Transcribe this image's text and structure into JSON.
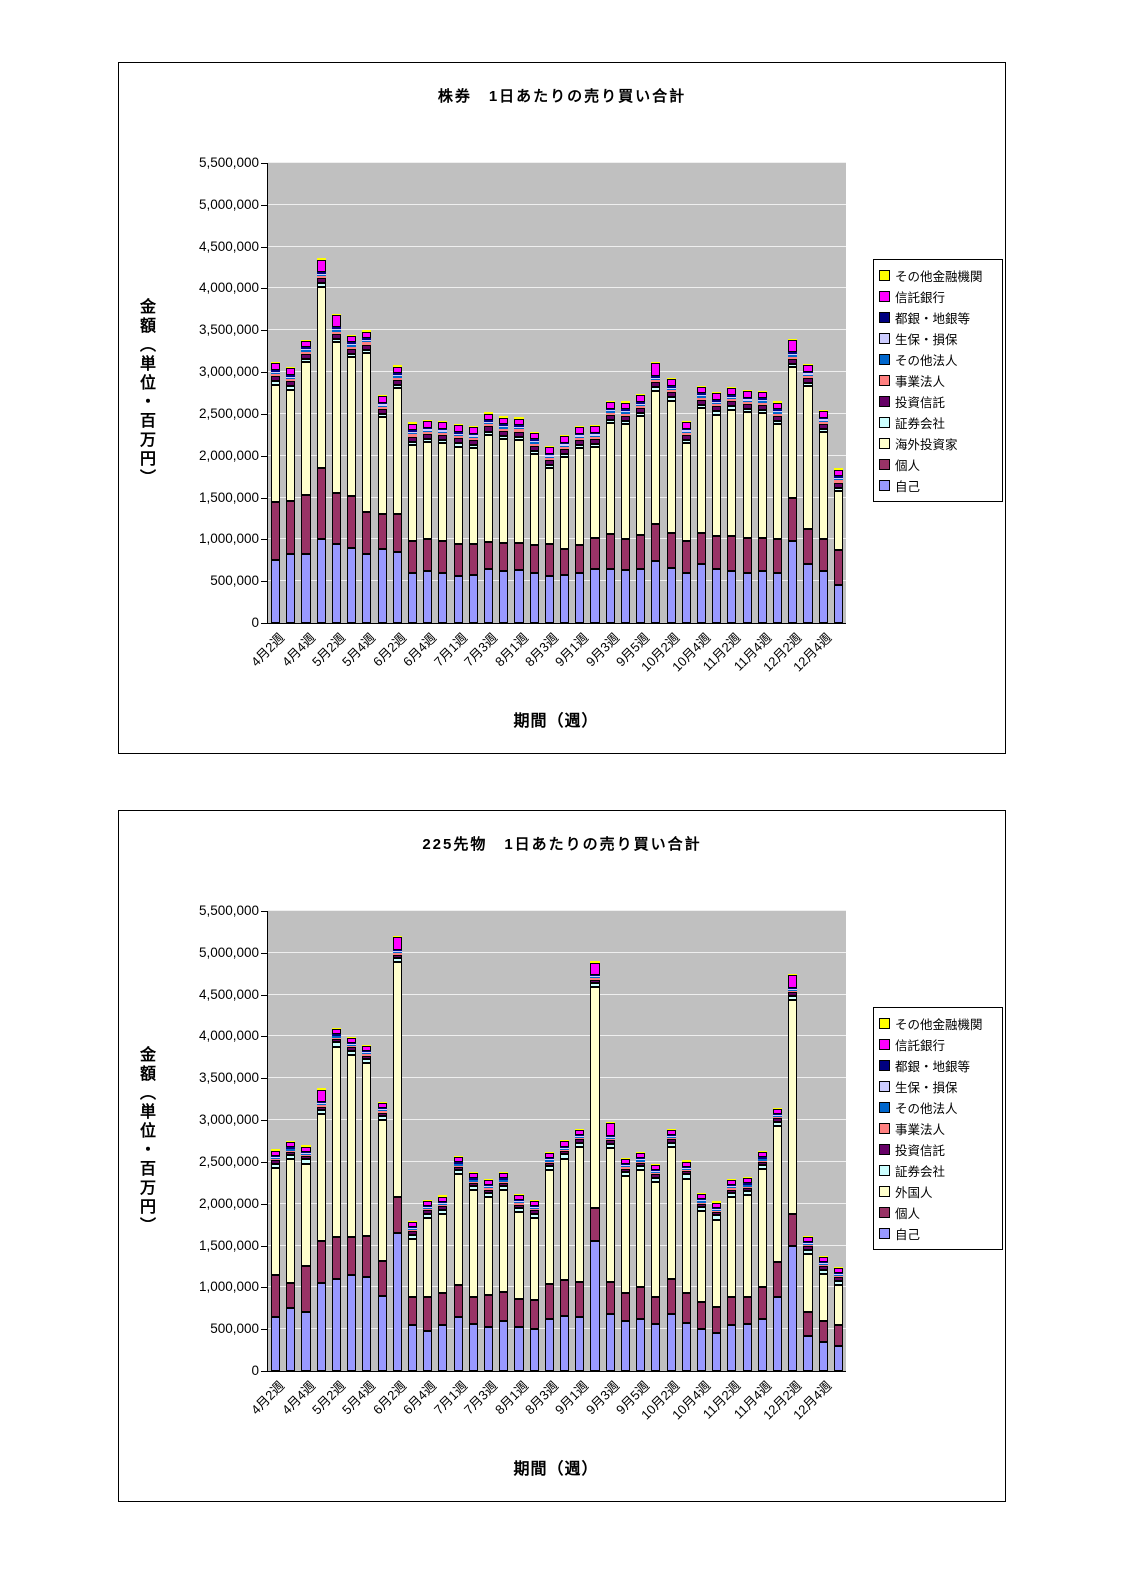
{
  "chart_data": [
    {
      "type": "bar",
      "stacked": true,
      "title": "株券　1日あたりの売り買い合計",
      "xlabel": "期間（週）",
      "ylabel": "金額（単位・百万円）",
      "ylim": [
        0,
        5500000
      ],
      "ytick_step": 500000,
      "plot_bg": "#C0C0C0",
      "grid_color": "#EFEFEF",
      "legend_position": "right",
      "xtick_every": 2,
      "categories": [
        "4月2週",
        "4月3週",
        "4月4週",
        "5月1週",
        "5月2週",
        "5月3週",
        "5月4週",
        "6月1週",
        "6月2週",
        "6月3週",
        "6月4週",
        "6月5週",
        "7月1週",
        "7月2週",
        "7月3週",
        "7月4週",
        "8月1週",
        "8月2週",
        "8月3週",
        "8月4週",
        "9月1週",
        "9月2週",
        "9月3週",
        "9月4週",
        "9月5週",
        "10月1週",
        "10月2週",
        "10月3週",
        "10月4週",
        "11月1週",
        "11月2週",
        "11月3週",
        "11月4週",
        "12月1週",
        "12月2週",
        "12月3週",
        "12月4週",
        "12月5週"
      ],
      "series": [
        {
          "name": "自己",
          "color": "#9999FF",
          "values": [
            750000,
            820000,
            830000,
            1000000,
            950000,
            900000,
            830000,
            880000,
            850000,
            600000,
            620000,
            600000,
            560000,
            580000,
            640000,
            620000,
            630000,
            600000,
            560000,
            580000,
            600000,
            640000,
            650000,
            630000,
            650000,
            740000,
            660000,
            600000,
            700000,
            640000,
            620000,
            600000,
            620000,
            600000,
            980000,
            700000,
            620000,
            450000
          ]
        },
        {
          "name": "個人",
          "color": "#993366",
          "values": [
            700000,
            640000,
            700000,
            850000,
            600000,
            620000,
            500000,
            420000,
            450000,
            380000,
            380000,
            380000,
            380000,
            360000,
            330000,
            340000,
            330000,
            330000,
            380000,
            300000,
            330000,
            380000,
            420000,
            380000,
            400000,
            440000,
            420000,
            380000,
            380000,
            400000,
            420000,
            420000,
            400000,
            400000,
            520000,
            420000,
            380000,
            420000
          ]
        },
        {
          "name": "海外投資家",
          "color": "#FFFFCC",
          "values": [
            1400000,
            1330000,
            1590000,
            2170000,
            1810000,
            1660000,
            1900000,
            1160000,
            1510000,
            1150000,
            1160000,
            1170000,
            1170000,
            1150000,
            1280000,
            1240000,
            1230000,
            1090000,
            910000,
            1100000,
            1160000,
            1080000,
            1320000,
            1370000,
            1420000,
            1600000,
            1580000,
            1170000,
            1490000,
            1450000,
            1510000,
            1500000,
            1490000,
            1380000,
            1560000,
            1710000,
            1280000,
            710000
          ]
        },
        {
          "name": "証券会社",
          "color": "#CCFFFF",
          "value_all": 40000
        },
        {
          "name": "投資信託",
          "color": "#660066",
          "value_all": 60000
        },
        {
          "name": "事業法人",
          "color": "#FF8080",
          "value_all": 25000
        },
        {
          "name": "その他法人",
          "color": "#0066CC",
          "value_all": 15000
        },
        {
          "name": "生保・損保",
          "color": "#CCCCFF",
          "value_all": 15000
        },
        {
          "name": "都銀・地銀等",
          "color": "#000080",
          "value_all": 20000
        },
        {
          "name": "信託銀行",
          "color": "#FF00FF",
          "value_all": 80000,
          "value_overrides": {
            "3": 150000,
            "4": 150000,
            "25": 150000,
            "34": 150000
          }
        },
        {
          "name": "その他金融機関",
          "color": "#FFFF00",
          "value_all": 15000
        }
      ],
      "legend": [
        "その他金融機関",
        "信託銀行",
        "都銀・地銀等",
        "生保・損保",
        "その他法人",
        "事業法人",
        "投資信託",
        "証券会社",
        "海外投資家",
        "個人",
        "自己"
      ]
    },
    {
      "type": "bar",
      "stacked": true,
      "title": "225先物　1日あたりの売り買い合計",
      "xlabel": "期間（週）",
      "ylabel": "金額（単位・百万円）",
      "ylim": [
        0,
        5500000
      ],
      "ytick_step": 500000,
      "plot_bg": "#C0C0C0",
      "grid_color": "#EFEFEF",
      "legend_position": "right",
      "xtick_every": 2,
      "categories": [
        "4月2週",
        "4月3週",
        "4月4週",
        "5月1週",
        "5月2週",
        "5月3週",
        "5月4週",
        "6月1週",
        "6月2週",
        "6月3週",
        "6月4週",
        "6月5週",
        "7月1週",
        "7月2週",
        "7月3週",
        "7月4週",
        "8月1週",
        "8月2週",
        "8月3週",
        "8月4週",
        "9月1週",
        "9月2週",
        "9月3週",
        "9月4週",
        "9月5週",
        "10月1週",
        "10月2週",
        "10月3週",
        "10月4週",
        "11月1週",
        "11月2週",
        "11月3週",
        "11月4週",
        "12月1週",
        "12月2週",
        "12月3週",
        "12月4週",
        "12月5週"
      ],
      "series": [
        {
          "name": "自己",
          "color": "#9999FF",
          "values": [
            650000,
            750000,
            700000,
            1050000,
            1100000,
            1150000,
            1130000,
            900000,
            1650000,
            550000,
            480000,
            550000,
            650000,
            560000,
            530000,
            600000,
            530000,
            500000,
            620000,
            660000,
            650000,
            1550000,
            680000,
            600000,
            620000,
            560000,
            680000,
            580000,
            500000,
            450000,
            550000,
            560000,
            620000,
            880000,
            1500000,
            420000,
            350000,
            300000
          ]
        },
        {
          "name": "個人",
          "color": "#993366",
          "values": [
            500000,
            300000,
            550000,
            500000,
            500000,
            450000,
            480000,
            420000,
            430000,
            330000,
            400000,
            380000,
            380000,
            320000,
            380000,
            350000,
            330000,
            350000,
            420000,
            430000,
            420000,
            400000,
            380000,
            330000,
            380000,
            330000,
            420000,
            350000,
            330000,
            320000,
            330000,
            330000,
            380000,
            420000,
            380000,
            280000,
            250000,
            250000
          ]
        },
        {
          "name": "外国人",
          "color": "#FFFFCC",
          "values": [
            1280000,
            1480000,
            1230000,
            1520000,
            2280000,
            2180000,
            2070000,
            1680000,
            2810000,
            700000,
            950000,
            950000,
            1320000,
            1280000,
            1170000,
            1210000,
            1040000,
            980000,
            1360000,
            1450000,
            1610000,
            2640000,
            1610000,
            1400000,
            1400000,
            1370000,
            1580000,
            1370000,
            1080000,
            1040000,
            1200000,
            1210000,
            1410000,
            1630000,
            2560000,
            700000,
            560000,
            480000
          ]
        },
        {
          "name": "証券会社",
          "color": "#CCFFFF",
          "value_all": 50000
        },
        {
          "name": "投資信託",
          "color": "#660066",
          "value_all": 40000
        },
        {
          "name": "事業法人",
          "color": "#FF8080",
          "value_all": 15000
        },
        {
          "name": "その他法人",
          "color": "#0066CC",
          "value_all": 15000
        },
        {
          "name": "生保・損保",
          "color": "#CCCCFF",
          "value_all": 10000
        },
        {
          "name": "都銀・地銀等",
          "color": "#000080",
          "value_all": 15000
        },
        {
          "name": "信託銀行",
          "color": "#FF00FF",
          "value_all": 60000,
          "value_overrides": {
            "3": 150000,
            "8": 150000,
            "21": 150000,
            "22": 150000,
            "34": 150000
          }
        },
        {
          "name": "その他金融機関",
          "color": "#FFFF00",
          "value_all": 15000
        }
      ],
      "legend": [
        "その他金融機関",
        "信託銀行",
        "都銀・地銀等",
        "生保・損保",
        "その他法人",
        "事業法人",
        "投資信託",
        "証券会社",
        "外国人",
        "個人",
        "自己"
      ]
    }
  ]
}
